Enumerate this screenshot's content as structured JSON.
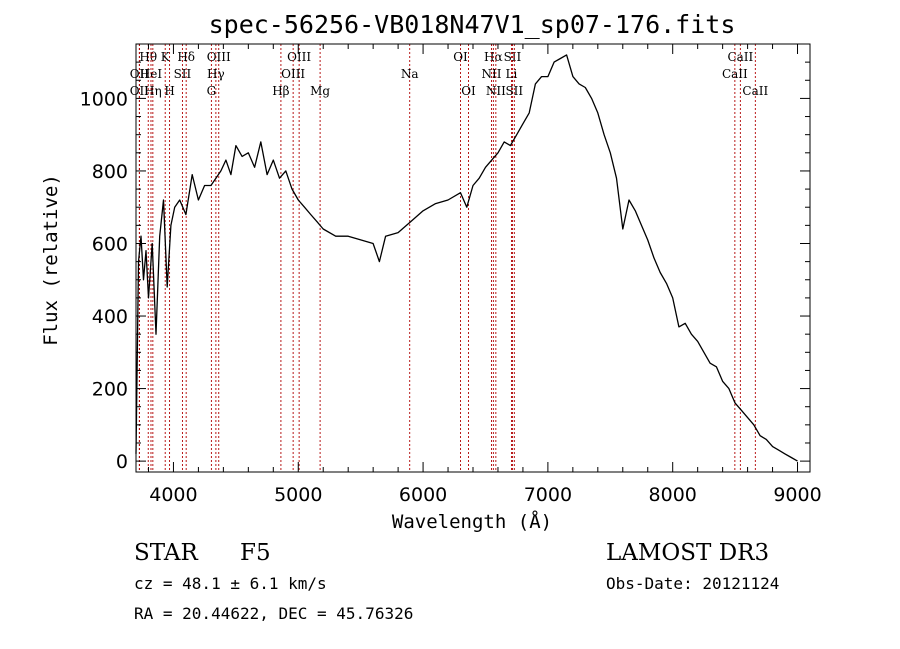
{
  "chart_data": {
    "type": "line",
    "title": "spec-56256-VB018N47V1_sp07-176.fits",
    "xlabel": "Wavelength (Å)",
    "ylabel": "Flux (relative)",
    "xlim": [
      3700,
      9100
    ],
    "ylim": [
      -30,
      1150
    ],
    "xticks": [
      4000,
      5000,
      6000,
      7000,
      8000,
      9000
    ],
    "xtick_labels": [
      "4000",
      "5000",
      "6000",
      "7000",
      "8000",
      "9000"
    ],
    "yticks": [
      0,
      200,
      400,
      600,
      800,
      1000
    ],
    "ytick_labels": [
      "0",
      "200",
      "400",
      "600",
      "800",
      "1000"
    ],
    "series": [
      {
        "color": "#000000",
        "x": [
          3700,
          3720,
          3740,
          3760,
          3780,
          3800,
          3830,
          3860,
          3890,
          3920,
          3950,
          3980,
          4010,
          4050,
          4100,
          4150,
          4200,
          4250,
          4300,
          4340,
          4380,
          4420,
          4460,
          4500,
          4550,
          4600,
          4650,
          4700,
          4750,
          4800,
          4850,
          4900,
          4950,
          5000,
          5050,
          5100,
          5150,
          5200,
          5300,
          5400,
          5500,
          5600,
          5650,
          5700,
          5800,
          5900,
          6000,
          6100,
          6200,
          6300,
          6350,
          6400,
          6450,
          6500,
          6550,
          6600,
          6650,
          6700,
          6750,
          6800,
          6850,
          6900,
          6950,
          7000,
          7050,
          7100,
          7150,
          7200,
          7250,
          7300,
          7350,
          7400,
          7450,
          7500,
          7550,
          7600,
          7650,
          7700,
          7750,
          7800,
          7850,
          7900,
          7950,
          8000,
          8050,
          8100,
          8150,
          8200,
          8250,
          8300,
          8350,
          8400,
          8450,
          8500,
          8550,
          8600,
          8650,
          8700,
          8750,
          8800,
          8850,
          8900,
          8950,
          9000
        ],
        "y": [
          20,
          550,
          620,
          500,
          580,
          450,
          600,
          350,
          620,
          720,
          480,
          650,
          700,
          720,
          680,
          790,
          720,
          760,
          760,
          780,
          800,
          830,
          790,
          870,
          840,
          850,
          810,
          880,
          790,
          830,
          780,
          800,
          750,
          720,
          700,
          680,
          660,
          640,
          620,
          620,
          610,
          600,
          550,
          620,
          630,
          660,
          690,
          710,
          720,
          740,
          700,
          760,
          780,
          810,
          830,
          850,
          880,
          870,
          900,
          930,
          960,
          1040,
          1060,
          1060,
          1100,
          1110,
          1120,
          1060,
          1040,
          1030,
          1000,
          960,
          900,
          850,
          780,
          640,
          720,
          690,
          650,
          610,
          560,
          520,
          490,
          450,
          370,
          380,
          350,
          330,
          300,
          270,
          260,
          220,
          200,
          160,
          140,
          120,
          100,
          70,
          60,
          40,
          30,
          20,
          10,
          0
        ]
      }
    ],
    "spectral_lines": [
      {
        "label": "OII",
        "wavelength": 3727,
        "row": 3
      },
      {
        "label": "Hθ",
        "wavelength": 3798,
        "row": 1
      },
      {
        "label": "OII",
        "wavelength": 3727,
        "row": 2
      },
      {
        "label": "HeI",
        "wavelength": 3820,
        "row": 2
      },
      {
        "label": "Hη",
        "wavelength": 3835,
        "row": 3
      },
      {
        "label": "K",
        "wavelength": 3934,
        "row": 1
      },
      {
        "label": "H",
        "wavelength": 3969,
        "row": 3
      },
      {
        "label": "SII",
        "wavelength": 4072,
        "row": 2
      },
      {
        "label": "Hδ",
        "wavelength": 4102,
        "row": 1
      },
      {
        "label": "OIII",
        "wavelength": 4363,
        "row": 1
      },
      {
        "label": "Hγ",
        "wavelength": 4340,
        "row": 2
      },
      {
        "label": "G",
        "wavelength": 4304,
        "row": 3
      },
      {
        "label": "Hβ",
        "wavelength": 4861,
        "row": 3
      },
      {
        "label": "OIII",
        "wavelength": 5007,
        "row": 1
      },
      {
        "label": "OIII",
        "wavelength": 4959,
        "row": 2
      },
      {
        "label": "Mg",
        "wavelength": 5175,
        "row": 3
      },
      {
        "label": "Na",
        "wavelength": 5893,
        "row": 2
      },
      {
        "label": "OI",
        "wavelength": 6300,
        "row": 1
      },
      {
        "label": "OI",
        "wavelength": 6364,
        "row": 3
      },
      {
        "label": "Hα",
        "wavelength": 6563,
        "row": 1
      },
      {
        "label": "NII",
        "wavelength": 6548,
        "row": 2
      },
      {
        "label": "NII",
        "wavelength": 6583,
        "row": 3
      },
      {
        "label": "SII",
        "wavelength": 6716,
        "row": 1
      },
      {
        "label": "Li",
        "wavelength": 6708,
        "row": 2
      },
      {
        "label": "SII",
        "wavelength": 6731,
        "row": 3
      },
      {
        "label": "CaII",
        "wavelength": 8542,
        "row": 1
      },
      {
        "label": "CaII",
        "wavelength": 8498,
        "row": 2
      },
      {
        "label": "CaII",
        "wavelength": 8662,
        "row": 3
      }
    ],
    "line_color": "#b00000",
    "grid": false,
    "legend": "none"
  },
  "info": {
    "object_class": "STAR",
    "subclass": "F5",
    "survey": "LAMOST DR3",
    "redshift": "cz = 48.1 ± 6.1 km/s",
    "obs_date": "Obs-Date: 20121124",
    "coords": "RA =  20.44622, DEC =  45.76326"
  }
}
